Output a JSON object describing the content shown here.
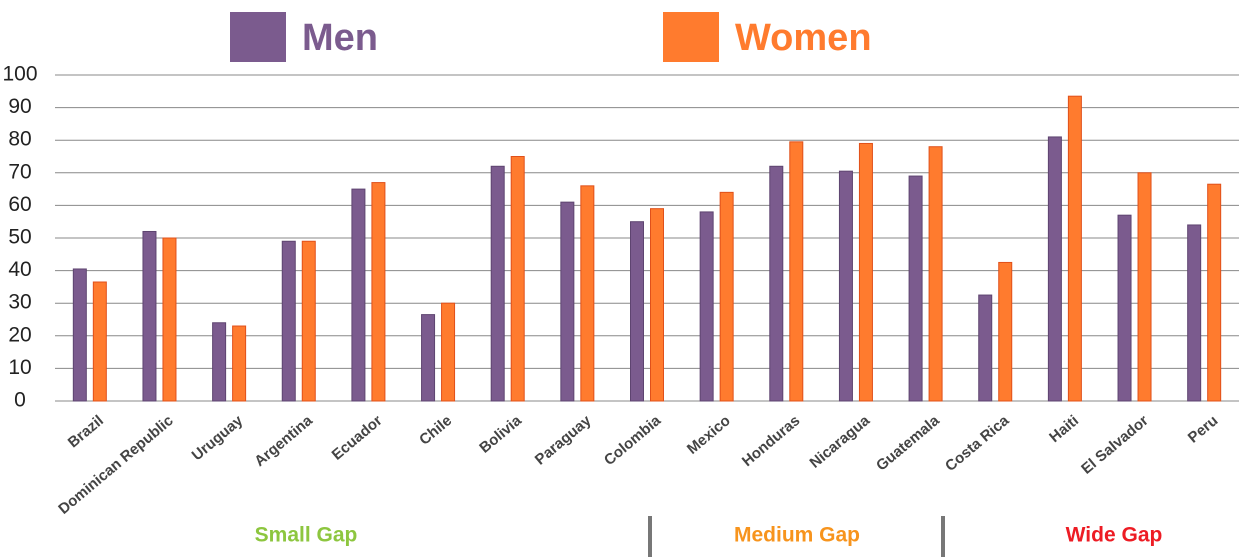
{
  "chart_data": {
    "type": "bar",
    "categories": [
      "Brazil",
      "Dominican Republic",
      "Uruguay",
      "Argentina",
      "Ecuador",
      "Chile",
      "Bolivia",
      "Paraguay",
      "Colombia",
      "Mexico",
      "Honduras",
      "Nicaragua",
      "Guatemala",
      "Costa Rica",
      "Haiti",
      "El Salvador",
      "Peru"
    ],
    "series": [
      {
        "name": "Men",
        "color": "#7b5b8e",
        "values": [
          40.5,
          52,
          24,
          49,
          65,
          26.5,
          72,
          61,
          55,
          58,
          72,
          70.5,
          69,
          32.5,
          81,
          57,
          54
        ]
      },
      {
        "name": "Women",
        "color": "#ff7b2e",
        "values": [
          36.5,
          50,
          23,
          49,
          67,
          30,
          75,
          66,
          59,
          64,
          79.5,
          79,
          78,
          42.5,
          93.5,
          70,
          66.5
        ]
      }
    ],
    "ylim": [
      0,
      100
    ],
    "yticks": [
      0,
      10,
      20,
      30,
      40,
      50,
      60,
      70,
      80,
      90,
      100
    ],
    "grid": true,
    "annotations": [
      {
        "text": "Small Gap",
        "color": "#8dc63f"
      },
      {
        "text": "Medium Gap",
        "color": "#f7941d"
      },
      {
        "text": "Wide Gap",
        "color": "#ed1c24"
      }
    ]
  }
}
